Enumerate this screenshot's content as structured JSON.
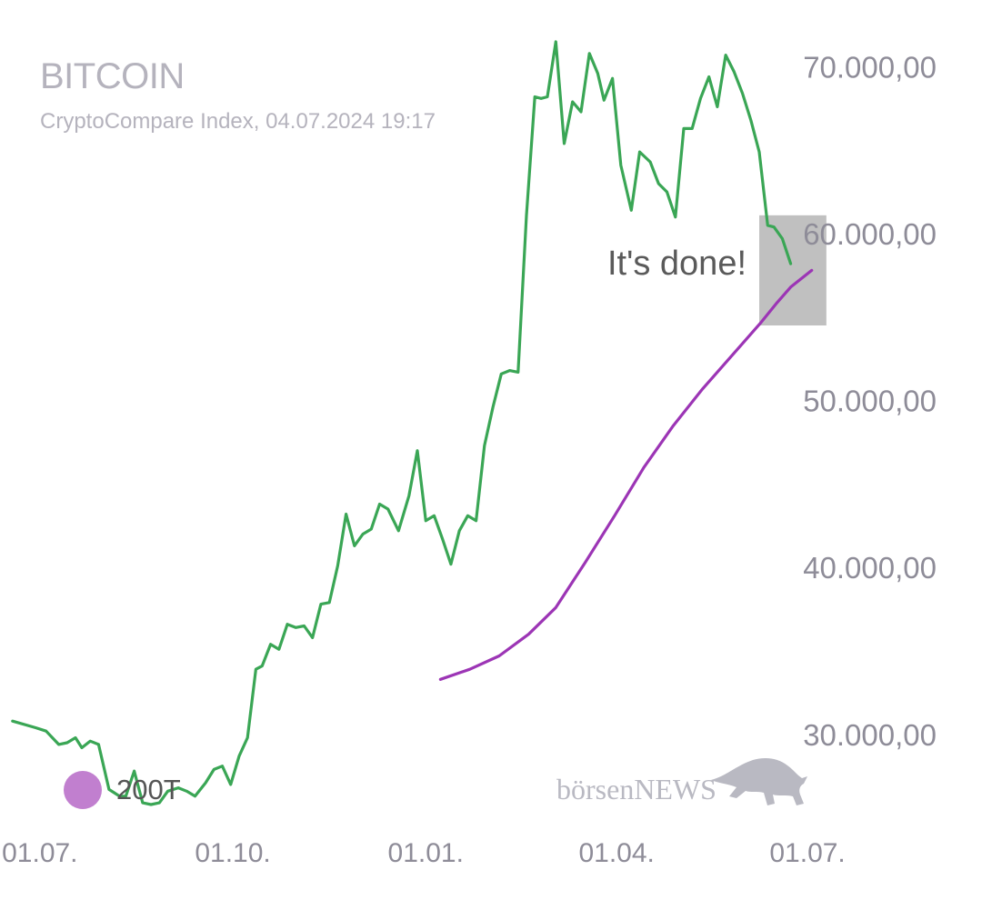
{
  "header": {
    "title": "BITCOIN",
    "subtitle": "CryptoCompare Index, 04.07.2024 19:17"
  },
  "legend": {
    "label": "200T",
    "color": "#c17fcf"
  },
  "logo": {
    "text": "börsenNEWS",
    "icon": "bull-icon"
  },
  "colors": {
    "price": "#3aa655",
    "sma": "#9c35b5",
    "annotation_box": "#c0c0c0"
  },
  "chart_data": {
    "type": "line",
    "title": "BITCOIN",
    "subtitle": "CryptoCompare Index, 04.07.2024 19:17",
    "x_unit": "date",
    "xlim": [
      "2023-06-12",
      "2024-07-04"
    ],
    "ylim": [
      24000,
      74000
    ],
    "y_ticks": [
      {
        "value": 30000,
        "label": "30.000,00"
      },
      {
        "value": 40000,
        "label": "40.000,00"
      },
      {
        "value": 50000,
        "label": "50.000,00"
      },
      {
        "value": 60000,
        "label": "60.000,00"
      },
      {
        "value": 70000,
        "label": "70.000,00"
      }
    ],
    "x_ticks": [
      {
        "date": "2023-07-01",
        "label": "01.07."
      },
      {
        "date": "2023-10-01",
        "label": "01.10."
      },
      {
        "date": "2024-01-01",
        "label": "01.01."
      },
      {
        "date": "2024-04-01",
        "label": "01.04."
      },
      {
        "date": "2024-07-01",
        "label": "01.07."
      }
    ],
    "y_axis_position": "right",
    "grid": false,
    "legend_position": "bottom-left",
    "annotation": {
      "text": "It's done!",
      "box_x": [
        "2024-06-08",
        "2024-07-10"
      ],
      "box_y": [
        54500,
        61100
      ]
    },
    "series": [
      {
        "name": "",
        "color": "#3aa655",
        "points": [
          [
            "2023-06-18",
            30800
          ],
          [
            "2023-06-29",
            30400
          ],
          [
            "2023-07-04",
            30200
          ],
          [
            "2023-07-10",
            29400
          ],
          [
            "2023-07-14",
            29500
          ],
          [
            "2023-07-18",
            29800
          ],
          [
            "2023-07-21",
            29200
          ],
          [
            "2023-07-25",
            29600
          ],
          [
            "2023-07-29",
            29400
          ],
          [
            "2023-08-03",
            26700
          ],
          [
            "2023-08-08",
            26300
          ],
          [
            "2023-08-11",
            26300
          ],
          [
            "2023-08-15",
            27800
          ],
          [
            "2023-08-19",
            25900
          ],
          [
            "2023-08-23",
            25800
          ],
          [
            "2023-08-27",
            25900
          ],
          [
            "2023-08-31",
            26600
          ],
          [
            "2023-09-05",
            26800
          ],
          [
            "2023-09-09",
            26600
          ],
          [
            "2023-09-13",
            26300
          ],
          [
            "2023-09-18",
            27100
          ],
          [
            "2023-09-22",
            27900
          ],
          [
            "2023-09-26",
            28100
          ],
          [
            "2023-09-30",
            27000
          ],
          [
            "2023-10-04",
            28700
          ],
          [
            "2023-10-08",
            29800
          ],
          [
            "2023-10-12",
            33900
          ],
          [
            "2023-10-15",
            34100
          ],
          [
            "2023-10-19",
            35400
          ],
          [
            "2023-10-23",
            35100
          ],
          [
            "2023-10-27",
            36600
          ],
          [
            "2023-10-31",
            36400
          ],
          [
            "2023-11-04",
            36500
          ],
          [
            "2023-11-08",
            35800
          ],
          [
            "2023-11-12",
            37800
          ],
          [
            "2023-11-16",
            37900
          ],
          [
            "2023-11-20",
            40100
          ],
          [
            "2023-11-24",
            43200
          ],
          [
            "2023-11-28",
            41300
          ],
          [
            "2023-12-02",
            42000
          ],
          [
            "2023-12-06",
            42300
          ],
          [
            "2023-12-10",
            43800
          ],
          [
            "2023-12-14",
            43500
          ],
          [
            "2023-12-19",
            42200
          ],
          [
            "2023-12-24",
            44300
          ],
          [
            "2023-12-28",
            47000
          ],
          [
            "2024-01-01",
            42800
          ],
          [
            "2024-01-05",
            43100
          ],
          [
            "2024-01-09",
            41700
          ],
          [
            "2024-01-13",
            40200
          ],
          [
            "2024-01-17",
            42200
          ],
          [
            "2024-01-21",
            43100
          ],
          [
            "2024-01-25",
            42800
          ],
          [
            "2024-01-29",
            47300
          ],
          [
            "2024-02-02",
            49600
          ],
          [
            "2024-02-06",
            51600
          ],
          [
            "2024-02-10",
            51800
          ],
          [
            "2024-02-14",
            51700
          ],
          [
            "2024-02-18",
            61100
          ],
          [
            "2024-02-22",
            68200
          ],
          [
            "2024-02-25",
            68100
          ],
          [
            "2024-02-28",
            68200
          ],
          [
            "2024-03-03",
            71500
          ],
          [
            "2024-03-07",
            65400
          ],
          [
            "2024-03-11",
            67900
          ],
          [
            "2024-03-15",
            67300
          ],
          [
            "2024-03-19",
            70800
          ],
          [
            "2024-03-23",
            69600
          ],
          [
            "2024-03-26",
            68000
          ],
          [
            "2024-03-30",
            69300
          ],
          [
            "2024-04-03",
            64100
          ],
          [
            "2024-04-08",
            61400
          ],
          [
            "2024-04-12",
            64900
          ],
          [
            "2024-04-17",
            64300
          ],
          [
            "2024-04-21",
            63000
          ],
          [
            "2024-04-25",
            62500
          ],
          [
            "2024-04-29",
            61000
          ],
          [
            "2024-05-03",
            66300
          ],
          [
            "2024-05-07",
            66300
          ],
          [
            "2024-05-11",
            68100
          ],
          [
            "2024-05-15",
            69400
          ],
          [
            "2024-05-19",
            67600
          ],
          [
            "2024-05-23",
            70700
          ],
          [
            "2024-05-27",
            69700
          ],
          [
            "2024-05-31",
            68400
          ],
          [
            "2024-06-04",
            66800
          ],
          [
            "2024-06-08",
            64900
          ],
          [
            "2024-06-12",
            60500
          ],
          [
            "2024-06-15",
            60400
          ],
          [
            "2024-06-19",
            59700
          ],
          [
            "2024-06-23",
            58200
          ]
        ]
      },
      {
        "name": "200T",
        "color": "#9c35b5",
        "points": [
          [
            "2024-01-08",
            33300
          ],
          [
            "2024-01-22",
            33900
          ],
          [
            "2024-02-05",
            34700
          ],
          [
            "2024-02-19",
            36000
          ],
          [
            "2024-03-03",
            37600
          ],
          [
            "2024-03-17",
            40300
          ],
          [
            "2024-03-31",
            43100
          ],
          [
            "2024-04-14",
            46000
          ],
          [
            "2024-04-28",
            48500
          ],
          [
            "2024-05-12",
            50700
          ],
          [
            "2024-05-26",
            52700
          ],
          [
            "2024-06-09",
            54700
          ],
          [
            "2024-06-16",
            55800
          ],
          [
            "2024-06-23",
            56800
          ],
          [
            "2024-06-30",
            57500
          ],
          [
            "2024-07-03",
            57800
          ]
        ]
      }
    ]
  }
}
